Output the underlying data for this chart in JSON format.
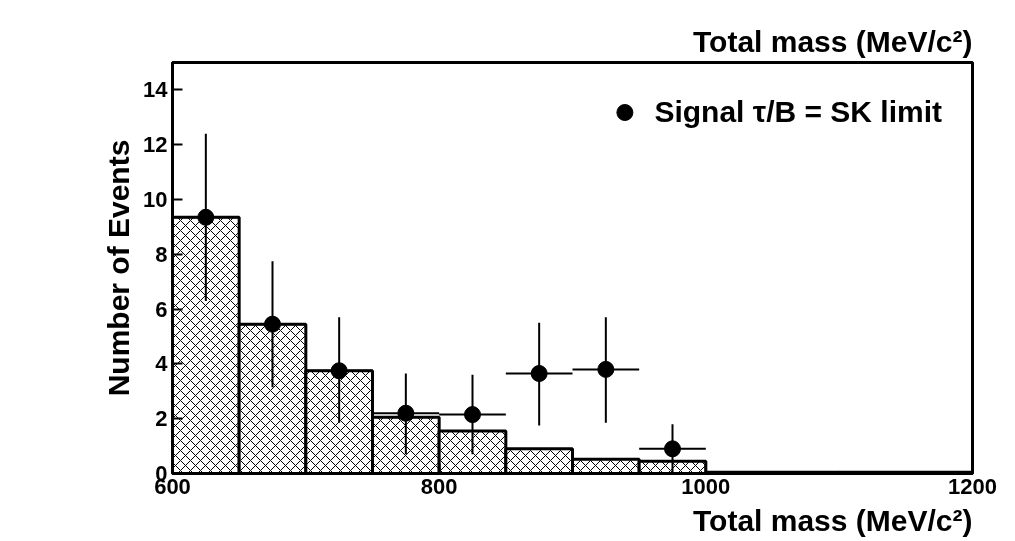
{
  "chart_data": {
    "type": "histogram",
    "title": "Total mass (MeV/c²)",
    "xlabel": "Total mass (MeV/c²)",
    "ylabel": "Number of Events",
    "xlim": [
      600,
      1200
    ],
    "ylim": [
      0,
      15
    ],
    "xticks": [
      600,
      800,
      1000,
      1200
    ],
    "yticks": [
      0,
      2,
      4,
      6,
      8,
      10,
      12,
      14
    ],
    "legend": "top right",
    "grid": false,
    "series": [
      {
        "color": "#000000",
        "bins": [
          600,
          650,
          700,
          750,
          800,
          850,
          900,
          950,
          1000,
          1050,
          1100,
          1150,
          1200
        ],
        "values": [
          9.35,
          5.45,
          3.75,
          2.05,
          1.55,
          0.9,
          0.52,
          0.45,
          0.05,
          0.05,
          0.05,
          0.05
        ]
      },
      {
        "type": "scatter",
        "name": "Signal τ/B = SK limit",
        "color": "#000000",
        "marker": "circle",
        "x": [
          625,
          675,
          725,
          775,
          825,
          875,
          925,
          975
        ],
        "values": [
          9.35,
          5.45,
          3.75,
          2.2,
          2.15,
          3.65,
          3.8,
          0.9
        ],
        "errors": [
          [
            6.3,
            12.4
          ],
          [
            3.15,
            7.75
          ],
          [
            1.85,
            5.7
          ],
          [
            0.7,
            3.65
          ],
          [
            0.7,
            3.6
          ],
          [
            1.75,
            5.5
          ],
          [
            1.85,
            5.7
          ],
          [
            0,
            1.8
          ]
        ],
        "xerrors": [
          25,
          25,
          25,
          25,
          25,
          25,
          25,
          25
        ]
      }
    ]
  }
}
